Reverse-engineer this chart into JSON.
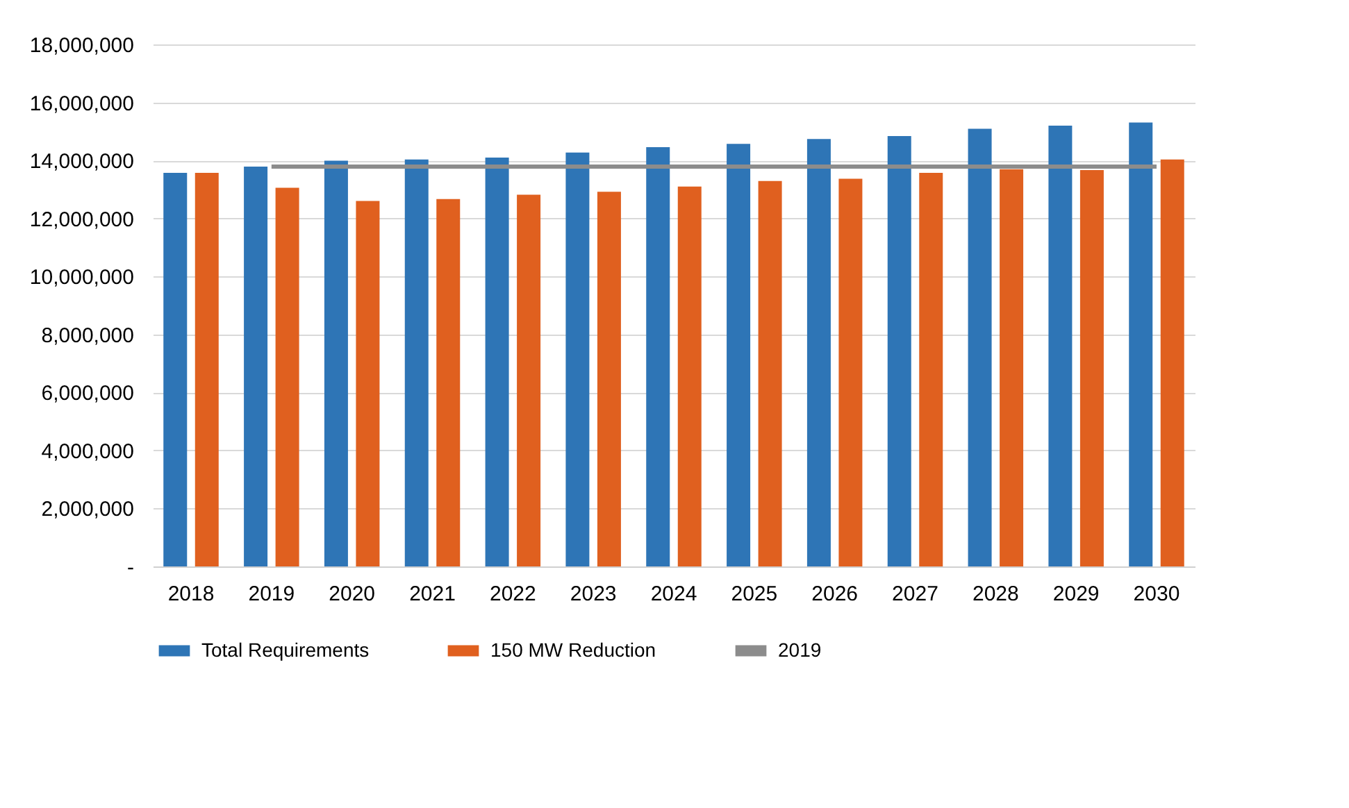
{
  "chart_data": {
    "type": "bar",
    "categories": [
      "2018",
      "2019",
      "2020",
      "2021",
      "2022",
      "2023",
      "2024",
      "2025",
      "2026",
      "2027",
      "2028",
      "2029",
      "2030"
    ],
    "series": [
      {
        "name": "Total Requirements",
        "color": "#2e75b6",
        "values": [
          13570000,
          13790000,
          13990000,
          14030000,
          14100000,
          14270000,
          14460000,
          14570000,
          14740000,
          14840000,
          15090000,
          15200000,
          15310000
        ]
      },
      {
        "name": "150 MW Reduction",
        "color": "#e0601f",
        "values": [
          13570000,
          13060000,
          12600000,
          12670000,
          12820000,
          12920000,
          13100000,
          13290000,
          13370000,
          13570000,
          13700000,
          13670000,
          14030000
        ]
      },
      {
        "name": "2019",
        "type": "line",
        "color": "#8c8c8c",
        "values": [
          null,
          13790000,
          13790000,
          13790000,
          13790000,
          13790000,
          13790000,
          13790000,
          13790000,
          13790000,
          13790000,
          13790000,
          13790000
        ]
      }
    ],
    "ylim": [
      0,
      18000000
    ],
    "yticks": [
      {
        "value": 0,
        "label": "-"
      },
      {
        "value": 2000000,
        "label": "2,000,000"
      },
      {
        "value": 4000000,
        "label": "4,000,000"
      },
      {
        "value": 6000000,
        "label": "6,000,000"
      },
      {
        "value": 8000000,
        "label": "8,000,000"
      },
      {
        "value": 10000000,
        "label": "10,000,000"
      },
      {
        "value": 12000000,
        "label": "12,000,000"
      },
      {
        "value": 14000000,
        "label": "14,000,000"
      },
      {
        "value": 16000000,
        "label": "16,000,000"
      },
      {
        "value": 18000000,
        "label": "18,000,000"
      }
    ],
    "grid": "y",
    "legend": "bottom"
  }
}
